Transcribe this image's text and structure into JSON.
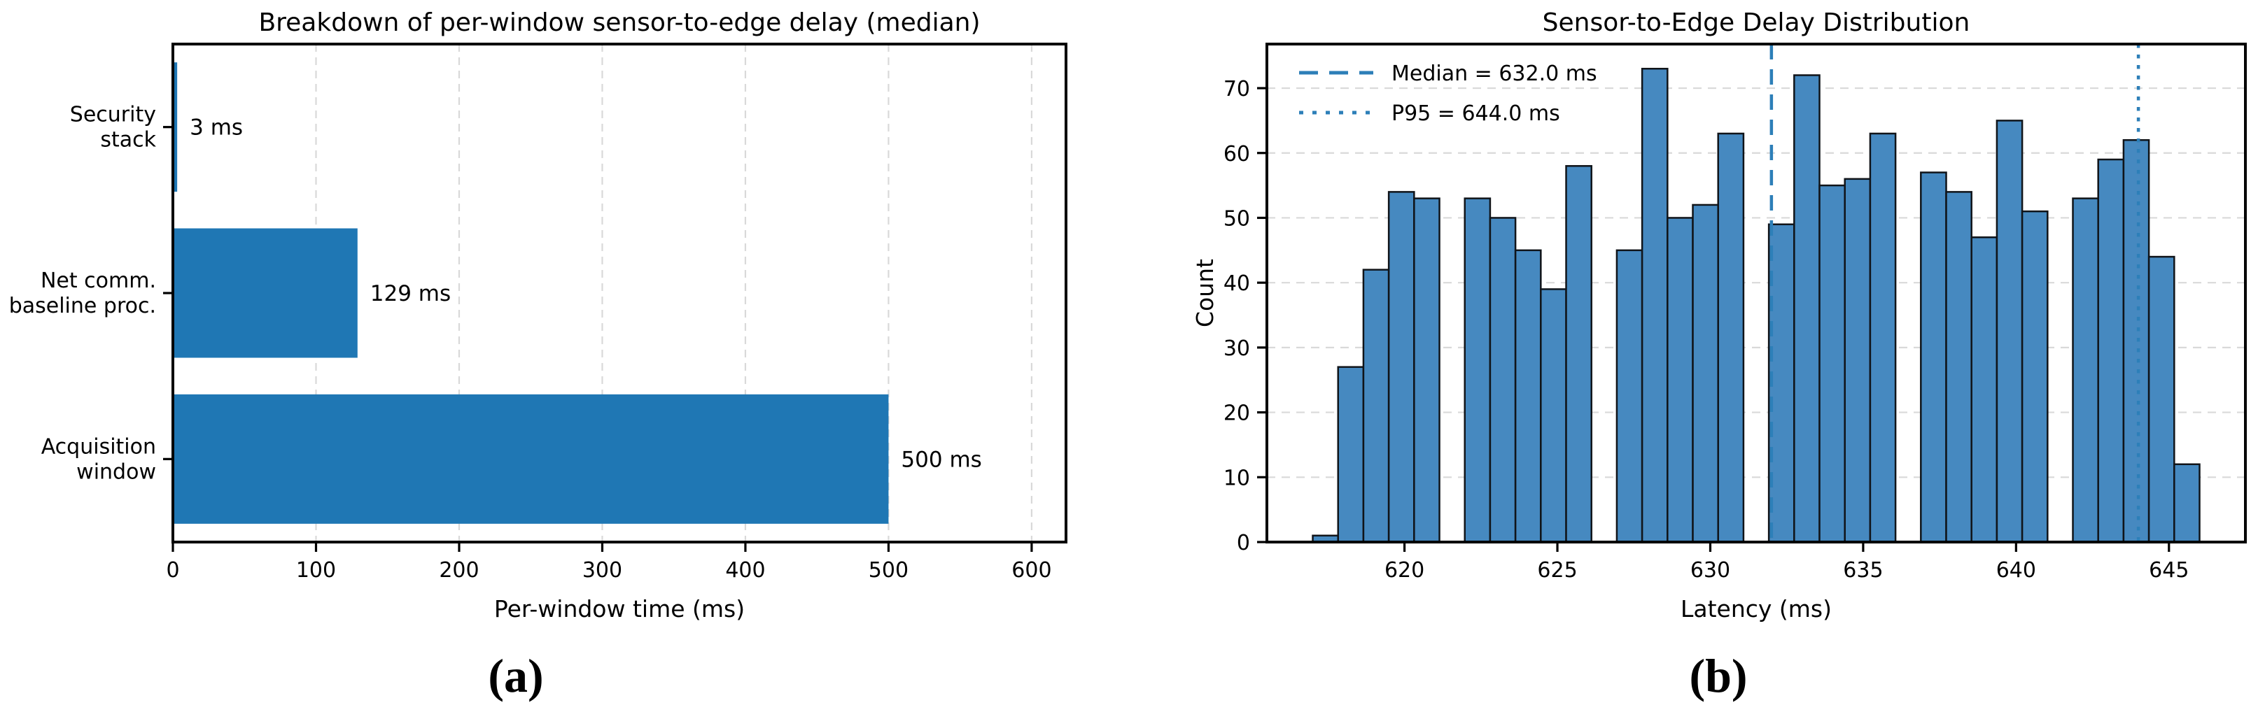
{
  "panels": {
    "a": {
      "caption": "(a)"
    },
    "b": {
      "caption": "(b)"
    }
  },
  "colors": {
    "bar_blue": "#1f77b4",
    "hist_fill": "#4689c0",
    "hist_edge": "#101419",
    "refline_blue": "#2d7fb8",
    "grid_gray": "#d9d9d9",
    "spine_black": "#000000"
  },
  "chart_data": [
    {
      "id": "per_window_breakdown",
      "type": "bar",
      "orientation": "horizontal",
      "title": "Breakdown of per-window sensor-to-edge delay (median)",
      "xlabel": "Per-window time (ms)",
      "ylabel": "",
      "categories": [
        "Security\nstack",
        "Net comm.\n+ baseline proc.",
        "Acquisition\nwindow"
      ],
      "values": [
        3,
        129,
        500
      ],
      "value_labels": [
        "3 ms",
        "129 ms",
        "500 ms"
      ],
      "xlim": [
        0,
        624
      ],
      "xticks": [
        0,
        100,
        200,
        300,
        400,
        500,
        600
      ],
      "grid": "vertical-dashed",
      "legend_position": "none"
    },
    {
      "id": "delay_distribution",
      "type": "histogram",
      "title": "Sensor-to-Edge Delay Distribution",
      "xlabel": "Latency (ms)",
      "ylabel": "Count",
      "bin_start": 617.0,
      "bin_width": 0.8286,
      "bin_end": 646.0,
      "counts": [
        1,
        27,
        42,
        54,
        53,
        0,
        53,
        50,
        45,
        39,
        58,
        0,
        45,
        73,
        50,
        52,
        63,
        0,
        49,
        72,
        55,
        56,
        63,
        0,
        57,
        54,
        47,
        65,
        51,
        0,
        53,
        59,
        62,
        44,
        12
      ],
      "xlim": [
        615.5,
        647.5
      ],
      "ylim": [
        0,
        76.8
      ],
      "xticks": [
        620,
        625,
        630,
        635,
        640,
        645
      ],
      "yticks": [
        0,
        10,
        20,
        30,
        40,
        50,
        60,
        70
      ],
      "grid": "horizontal-dashed",
      "legend_position": "upper-left",
      "reference_lines": [
        {
          "value": 632.0,
          "style": "dashed",
          "legend_label": "Median = 632.0 ms"
        },
        {
          "value": 644.0,
          "style": "dotted",
          "legend_label": "P95 = 644.0 ms"
        }
      ]
    }
  ]
}
